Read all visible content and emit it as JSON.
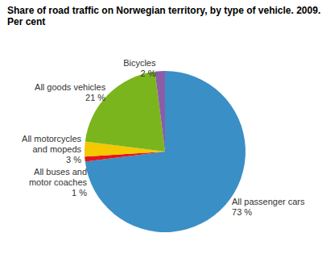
{
  "chart_data": {
    "type": "pie",
    "title": "Share of road traffic on Norwegian territory, by type of vehicle. 2009.",
    "subtitle": "Per cent",
    "categories": [
      "All passenger cars",
      "All buses and motor coaches",
      "All motorcycles and mopeds",
      "All goods vehicles",
      "Bicycles"
    ],
    "values": [
      73,
      1,
      3,
      21,
      2
    ],
    "value_labels": [
      "73 %",
      "1 %",
      "3 %",
      "21 %",
      "2 %"
    ],
    "colors": [
      "#3a8fc6",
      "#e3141b",
      "#f5c800",
      "#7ab51d",
      "#8d5ca6"
    ],
    "data_labels": true
  }
}
